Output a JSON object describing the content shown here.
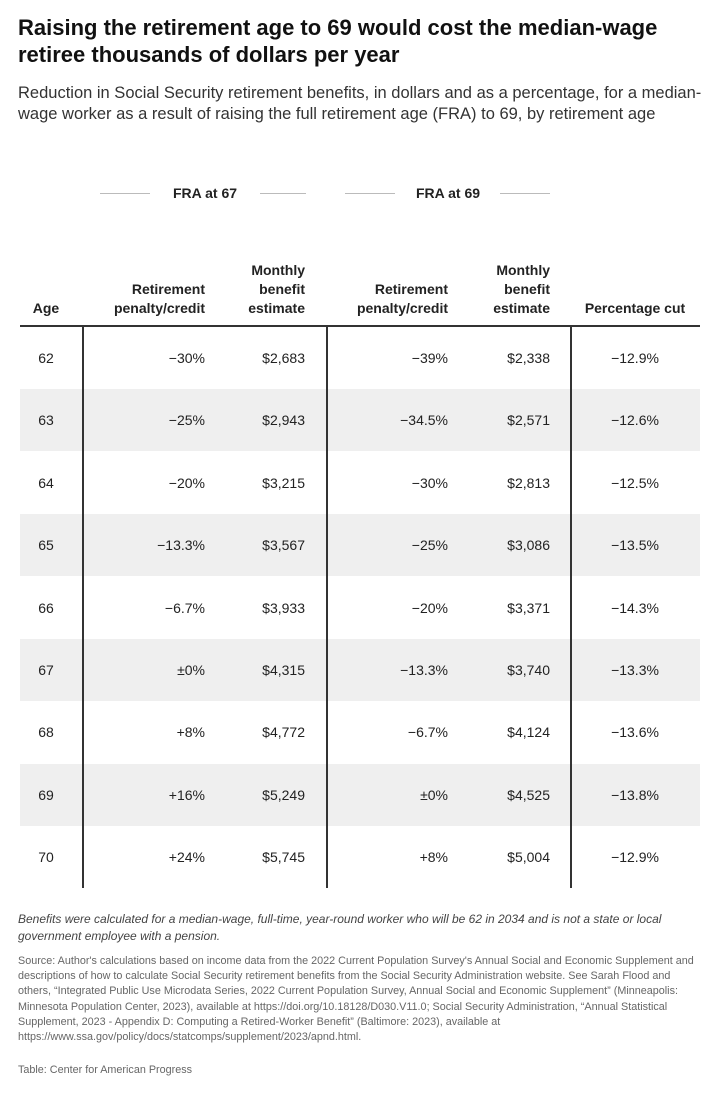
{
  "header": {
    "title": "Raising the retirement age to 69 would cost the median-wage retiree thousands of dollars per year",
    "subtitle": "Reduction in Social Security retirement benefits, in dollars and as a percentage, for a median-wage worker as a result of raising the full retirement age (FRA) to 69, by retirement age"
  },
  "table": {
    "groups": [
      "FRA at 67",
      "FRA at 69"
    ],
    "columns": [
      "Age",
      "Retirement penalty/credit",
      "Monthly benefit estimate",
      "Retirement penalty/credit",
      "Monthly benefit estimate",
      "Percentage cut"
    ],
    "rows": [
      [
        "62",
        "−30%",
        "$2,683",
        "−39%",
        "$2,338",
        "−12.9%"
      ],
      [
        "63",
        "−25%",
        "$2,943",
        "−34.5%",
        "$2,571",
        "−12.6%"
      ],
      [
        "64",
        "−20%",
        "$3,215",
        "−30%",
        "$2,813",
        "−12.5%"
      ],
      [
        "65",
        "−13.3%",
        "$3,567",
        "−25%",
        "$3,086",
        "−13.5%"
      ],
      [
        "66",
        "−6.7%",
        "$3,933",
        "−20%",
        "$3,371",
        "−14.3%"
      ],
      [
        "67",
        "±0%",
        "$4,315",
        "−13.3%",
        "$3,740",
        "−13.3%"
      ],
      [
        "68",
        "+8%",
        "$4,772",
        "−6.7%",
        "$4,124",
        "−13.6%"
      ],
      [
        "69",
        "+16%",
        "$5,249",
        "±0%",
        "$4,525",
        "−13.8%"
      ],
      [
        "70",
        "+24%",
        "$5,745",
        "+8%",
        "$5,004",
        "−12.9%"
      ]
    ]
  },
  "footer": {
    "note": "Benefits were calculated for a median-wage, full-time, year-round worker who will be 62 in 2034 and is not a state or local government employee with a pension.",
    "source": "Source: Author's calculations based on income data from the 2022 Current Population Survey's Annual Social and Economic Supplement and descriptions of how to calculate Social Security retirement benefits from the Social Security Administration website. See Sarah Flood and others, “Integrated Public Use Microdata Series, 2022 Current Population Survey, Annual Social and Economic Supplement” (Minneapolis: Minnesota Population Center, 2023), available at https://doi.org/10.18128/D030.V11.0; Social Security Administration, “Annual Statistical Supplement, 2023 - Appendix D: Computing a Retired-Worker Benefit” (Baltimore: 2023), available at https://www.ssa.gov/policy/docs/statcomps/supplement/2023/apnd.html.",
    "credit": "Table: Center for American Progress"
  }
}
